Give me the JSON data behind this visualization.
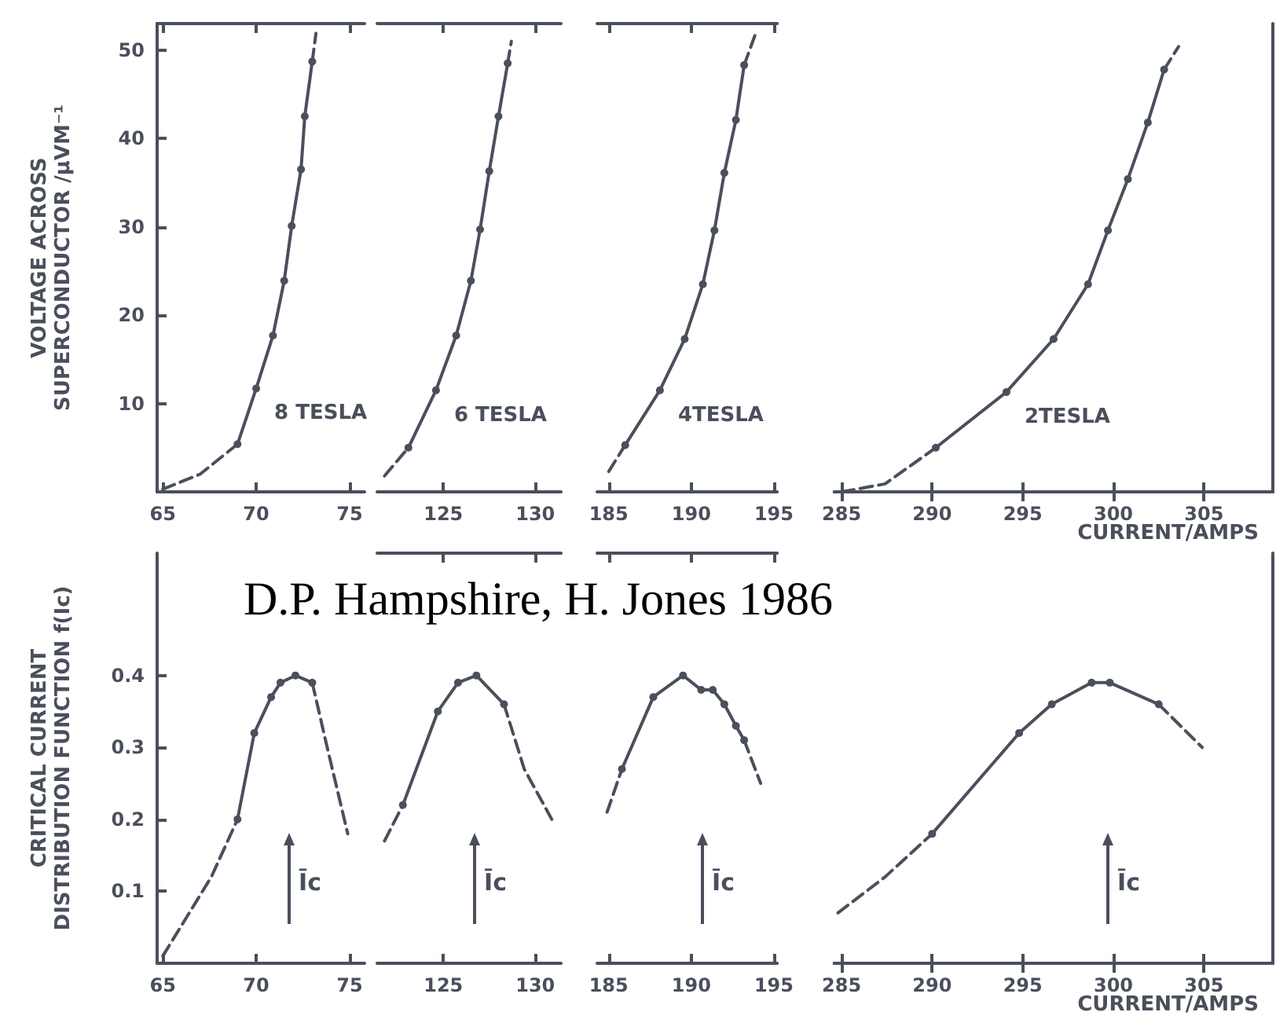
{
  "chart_data": [
    {
      "type": "line",
      "ylabel": "VOLTAGE ACROSS\nSUPERCONDUCTOR /μVM⁻¹",
      "xlim": [
        64.7,
        75.8
      ],
      "xticks": [
        65,
        70,
        75
      ],
      "ylim": [
        0,
        53
      ],
      "yticks": [
        10,
        20,
        30,
        40,
        50
      ],
      "marker": "circle",
      "series": [
        {
          "name": "8 TESLA",
          "color": "#4a4f5c",
          "x": [
            69,
            70,
            70.9,
            71.5,
            71.9,
            72.4,
            72.6,
            73
          ],
          "values": [
            5.4,
            11.7,
            17.7,
            23.9,
            30.1,
            36.5,
            42.5,
            48.7
          ]
        },
        {
          "color": "#4a4f5c",
          "marker": "none",
          "line_style": "dashed",
          "x": [
            65,
            67,
            69
          ],
          "values": [
            0.3,
            2,
            5.4
          ]
        },
        {
          "color": "#4a4f5c",
          "marker": "none",
          "line_style": "dashed",
          "x": [
            73,
            73.2
          ],
          "values": [
            48.7,
            51.9
          ]
        }
      ]
    },
    {
      "type": "line",
      "xlim": [
        121.4,
        131.4
      ],
      "xticks": [
        125,
        130
      ],
      "ylim": [
        0,
        53
      ],
      "tick_labels": "x",
      "marker": "circle",
      "series": [
        {
          "name": "6 TESLA",
          "color": "#4a4f5c",
          "x": [
            123.1,
            124.6,
            125.7,
            126.5,
            127,
            127.5,
            128,
            128.5
          ],
          "values": [
            5,
            11.5,
            17.7,
            23.9,
            29.7,
            36.3,
            42.5,
            48.5
          ]
        },
        {
          "color": "#4a4f5c",
          "marker": "none",
          "line_style": "dashed",
          "x": [
            121.8,
            123.1
          ],
          "values": [
            1.8,
            5
          ]
        },
        {
          "color": "#4a4f5c",
          "marker": "none",
          "line_style": "dashed",
          "x": [
            128.5,
            128.7
          ],
          "values": [
            48.5,
            51
          ]
        }
      ]
    },
    {
      "type": "line",
      "xlim": [
        184.3,
        195.2
      ],
      "xticks": [
        185,
        190,
        195
      ],
      "ylim": [
        0,
        53
      ],
      "tick_labels": "x",
      "marker": "circle",
      "series": [
        {
          "name": "4TESLA",
          "color": "#4a4f5c",
          "x": [
            186,
            188.1,
            189.6,
            190.7,
            191.4,
            192,
            192.7,
            193.2
          ],
          "values": [
            5.3,
            11.5,
            17.3,
            23.5,
            29.6,
            36.1,
            42.1,
            48.3
          ]
        },
        {
          "color": "#4a4f5c",
          "marker": "none",
          "line_style": "dashed",
          "x": [
            185,
            186
          ],
          "values": [
            2.3,
            5.3
          ]
        },
        {
          "color": "#4a4f5c",
          "marker": "none",
          "line_style": "dashed",
          "x": [
            193.2,
            193.9
          ],
          "values": [
            48.3,
            51.9
          ]
        }
      ]
    },
    {
      "type": "line",
      "xlabel": "CURRENT/AMPS",
      "xlim": [
        284.6,
        308.8
      ],
      "xticks": [
        285,
        290,
        295,
        300,
        305
      ],
      "ylim": [
        0,
        53
      ],
      "tick_labels": "x",
      "marker": "circle",
      "series": [
        {
          "name": "2TESLA",
          "color": "#4a4f5c",
          "x": [
            290.2,
            294.1,
            296.7,
            298.6,
            299.7,
            300.8,
            301.9,
            302.8
          ],
          "values": [
            5,
            11.3,
            17.3,
            23.5,
            29.6,
            35.4,
            41.8,
            47.8
          ]
        },
        {
          "color": "#4a4f5c",
          "marker": "none",
          "line_style": "dashed",
          "x": [
            285,
            287.4,
            290.2
          ],
          "values": [
            0,
            0.9,
            5
          ]
        },
        {
          "color": "#4a4f5c",
          "marker": "none",
          "line_style": "dashed",
          "x": [
            302.8,
            303.6
          ],
          "values": [
            47.8,
            50.4
          ]
        }
      ]
    },
    {
      "type": "line",
      "ylabel": "CRITICAL CURRENT\nDISTRIBUTION FUNCTION f(Ic)",
      "xlim": [
        64.7,
        75.8
      ],
      "xticks": [
        65,
        70,
        75
      ],
      "ylim": [
        0,
        0.57
      ],
      "yticks": [
        0.1,
        0.2,
        0.3,
        0.4
      ],
      "marker": "circle",
      "annotations": [
        "Īc",
        "D.P. Hampshire, H. Jones 1986"
      ],
      "series": [
        {
          "color": "#4a4f5c",
          "x": [
            69,
            69.9,
            70.8,
            71.3,
            72.1,
            73
          ],
          "values": [
            0.2,
            0.32,
            0.37,
            0.39,
            0.4,
            0.39
          ]
        },
        {
          "color": "#4a4f5c",
          "marker": "none",
          "line_style": "dashed",
          "x": [
            65,
            67.6,
            69
          ],
          "values": [
            0.01,
            0.12,
            0.2
          ]
        },
        {
          "color": "#4a4f5c",
          "marker": "none",
          "line_style": "dashed",
          "x": [
            73,
            73.8,
            74.9
          ],
          "values": [
            0.39,
            0.3,
            0.18
          ]
        }
      ]
    },
    {
      "type": "line",
      "xlim": [
        121.4,
        131.4
      ],
      "xticks": [
        125,
        130
      ],
      "ylim": [
        0,
        0.57
      ],
      "tick_labels": "x",
      "marker": "circle",
      "annotations": [
        "Īc"
      ],
      "series": [
        {
          "color": "#4a4f5c",
          "x": [
            122.8,
            124.7,
            125.8,
            126.8,
            128.3
          ],
          "values": [
            0.22,
            0.35,
            0.39,
            0.4,
            0.36
          ]
        },
        {
          "color": "#4a4f5c",
          "marker": "none",
          "line_style": "dashed",
          "x": [
            121.8,
            122.8
          ],
          "values": [
            0.17,
            0.22
          ]
        },
        {
          "color": "#4a4f5c",
          "marker": "none",
          "line_style": "dashed",
          "x": [
            128.3,
            129.4,
            130.9
          ],
          "values": [
            0.36,
            0.27,
            0.2
          ]
        }
      ]
    },
    {
      "type": "line",
      "xlim": [
        184.3,
        195.2
      ],
      "xticks": [
        185,
        190,
        195
      ],
      "ylim": [
        0,
        0.57
      ],
      "tick_labels": "x",
      "marker": "circle",
      "annotations": [
        "Īc"
      ],
      "series": [
        {
          "color": "#4a4f5c",
          "x": [
            185.8,
            187.7,
            189.5,
            190.6,
            191.3,
            192,
            192.7,
            193.2
          ],
          "values": [
            0.27,
            0.37,
            0.4,
            0.38,
            0.38,
            0.36,
            0.33,
            0.31
          ]
        },
        {
          "color": "#4a4f5c",
          "marker": "none",
          "line_style": "dashed",
          "x": [
            184.9,
            185.8
          ],
          "values": [
            0.21,
            0.27
          ]
        },
        {
          "color": "#4a4f5c",
          "marker": "none",
          "line_style": "dashed",
          "x": [
            193.2,
            194.2
          ],
          "values": [
            0.31,
            0.25
          ]
        }
      ]
    },
    {
      "type": "line",
      "xlabel": "CURRENT/AMPS",
      "xlim": [
        284.6,
        308.8
      ],
      "xticks": [
        285,
        290,
        295,
        300,
        305
      ],
      "ylim": [
        0,
        0.57
      ],
      "tick_labels": "x",
      "marker": "circle",
      "annotations": [
        "Īc"
      ],
      "series": [
        {
          "color": "#4a4f5c",
          "x": [
            290,
            294.8,
            296.6,
            298.8,
            299.8,
            302.5
          ],
          "values": [
            0.18,
            0.32,
            0.36,
            0.39,
            0.39,
            0.36
          ]
        },
        {
          "color": "#4a4f5c",
          "marker": "none",
          "line_style": "dashed",
          "x": [
            284.8,
            287.4,
            290
          ],
          "values": [
            0.07,
            0.12,
            0.18
          ]
        },
        {
          "color": "#4a4f5c",
          "marker": "none",
          "line_style": "dashed",
          "x": [
            302.5,
            304.9
          ],
          "values": [
            0.36,
            0.3
          ]
        }
      ]
    }
  ]
}
